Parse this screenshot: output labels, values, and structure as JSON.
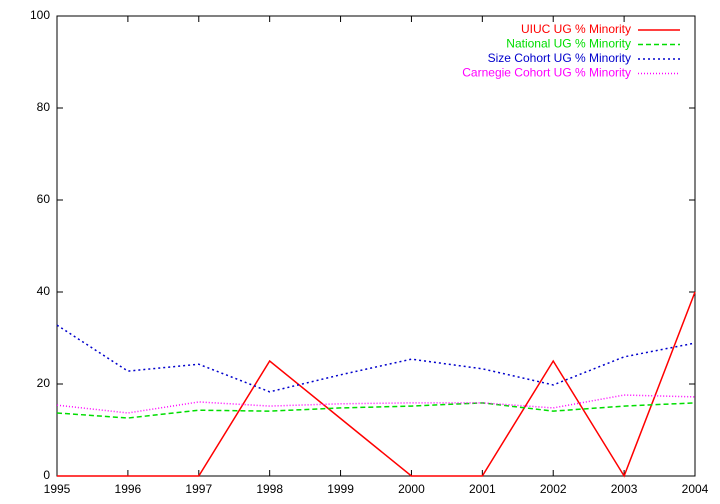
{
  "chart_data": {
    "type": "line",
    "x": [
      1995,
      1996,
      1997,
      1998,
      1999,
      2000,
      2001,
      2002,
      2003,
      2004
    ],
    "xlim": [
      1995,
      2004
    ],
    "xticks": [
      1995,
      1996,
      1997,
      1998,
      1999,
      2000,
      2001,
      2002,
      2003,
      2004
    ],
    "ylim": [
      0,
      100
    ],
    "yticks": [
      0,
      20,
      40,
      60,
      80,
      100
    ],
    "legend": "top-right",
    "series": [
      {
        "name": "UIUC UG % Minority",
        "color": "#ff0000",
        "dash": "solid",
        "values": [
          0,
          0,
          0,
          25,
          12.5,
          0,
          0,
          25,
          0,
          40
        ]
      },
      {
        "name": "National UG % Minority",
        "color": "#00dd00",
        "dash": "dashed",
        "values": [
          13.7,
          12.6,
          14.3,
          14.1,
          14.8,
          15.2,
          15.9,
          14.1,
          15.2,
          15.9
        ]
      },
      {
        "name": "Size Cohort UG % Minority",
        "color": "#0000cc",
        "dash": "dotted",
        "values": [
          32.8,
          22.8,
          24.3,
          18.3,
          22,
          25.4,
          23.3,
          19.8,
          25.9,
          28.9
        ]
      },
      {
        "name": "Carnegie Cohort UG % Minority",
        "color": "#ff00ff",
        "dash": "fine-dotted",
        "values": [
          15.4,
          13.7,
          16.1,
          15.2,
          15.7,
          15.9,
          15.9,
          14.8,
          17.6,
          17.2
        ]
      }
    ]
  }
}
